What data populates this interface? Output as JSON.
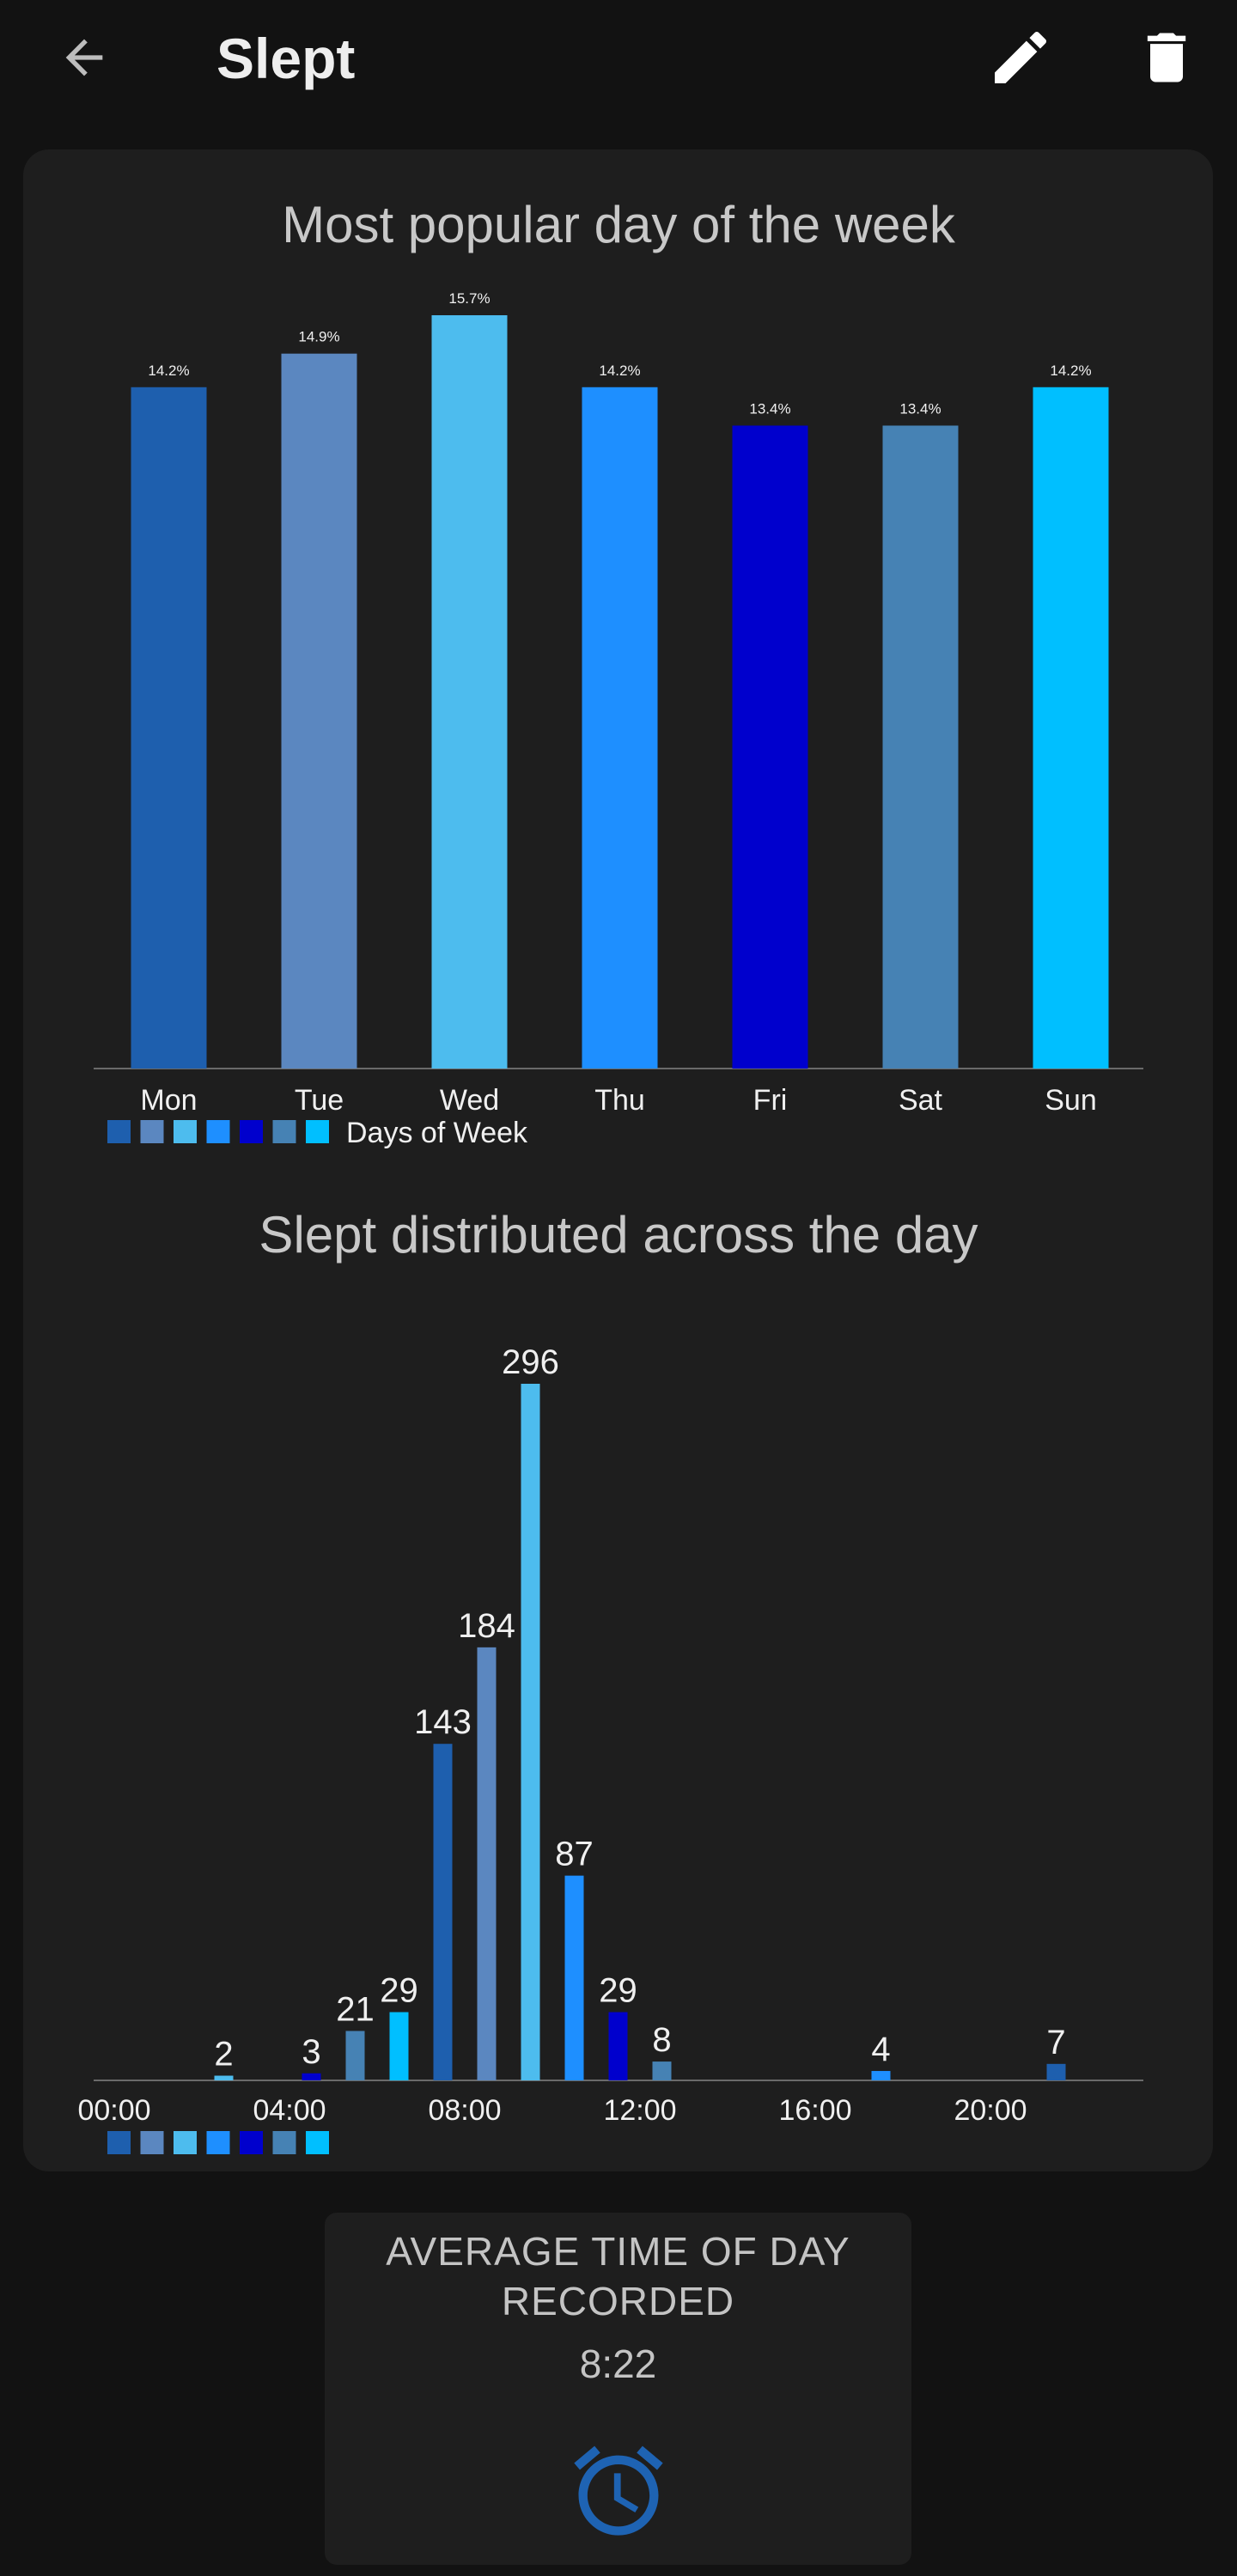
{
  "appbar": {
    "title": "Slept",
    "back_icon": "arrow-left-icon",
    "edit_icon": "pencil-icon",
    "delete_icon": "trash-icon"
  },
  "colors": {
    "background": "#121212",
    "card": "#1e1e1e",
    "accent": "#1e63b3",
    "series_palette": [
      "#1e5fae",
      "#5b87c0",
      "#4dbcee",
      "#1e8fff",
      "#0000cd",
      "#4682b4",
      "#00bfff"
    ]
  },
  "chart_data": [
    {
      "type": "bar",
      "title": "Most popular day of the week",
      "categories": [
        "Mon",
        "Tue",
        "Wed",
        "Thu",
        "Fri",
        "Sat",
        "Sun"
      ],
      "values": [
        14.2,
        14.9,
        15.7,
        14.2,
        13.4,
        13.4,
        14.2
      ],
      "value_labels": [
        "14.2%",
        "14.9%",
        "15.7%",
        "14.2%",
        "13.4%",
        "13.4%",
        "14.2%"
      ],
      "colors": [
        "#1e5fae",
        "#5b87c0",
        "#4dbcee",
        "#1e8fff",
        "#0000cd",
        "#4682b4",
        "#00bfff"
      ],
      "legend": {
        "label": "Days of Week",
        "placement": "bottom-left"
      },
      "ylim": [
        0,
        15.7
      ],
      "grid": false
    },
    {
      "type": "bar",
      "title": "Slept distributed across the day",
      "x": [
        2,
        4,
        5,
        6,
        7,
        8,
        9,
        10,
        11,
        12,
        17,
        21
      ],
      "values": [
        2,
        3,
        21,
        29,
        143,
        184,
        296,
        87,
        29,
        8,
        4,
        7
      ],
      "value_labels": [
        "2",
        "3",
        "21",
        "29",
        "143",
        "184",
        "296",
        "87",
        "29",
        "8",
        "4",
        "7"
      ],
      "colors": [
        "#4dbcee",
        "#0000cd",
        "#4682b4",
        "#00bfff",
        "#1e5fae",
        "#5b87c0",
        "#4dbcee",
        "#1e8fff",
        "#0000cd",
        "#4682b4",
        "#1e8fff",
        "#1e5fae"
      ],
      "x_ticks": [
        "00:00",
        "04:00",
        "08:00",
        "12:00",
        "16:00",
        "20:00"
      ],
      "x_tick_values": [
        0,
        4,
        8,
        12,
        16,
        20
      ],
      "xlim": [
        0,
        24
      ],
      "ylim": [
        0,
        296
      ],
      "legend": {
        "label": "",
        "placement": "bottom-left"
      },
      "grid": false
    }
  ],
  "stat": {
    "label_line1": "AVERAGE TIME OF DAY",
    "label_line2": "RECORDED",
    "value": "8:22",
    "icon": "alarm-clock-icon"
  }
}
